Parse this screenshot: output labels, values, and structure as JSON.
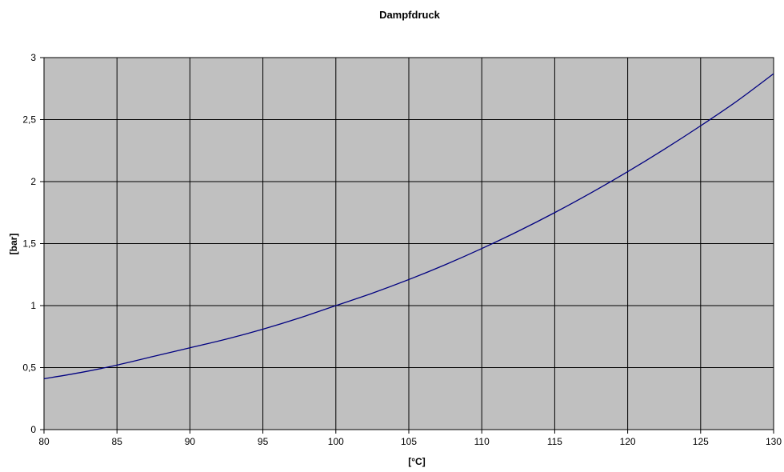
{
  "chart_data": {
    "type": "line",
    "title": "Dampfdruck",
    "xlabel": "[°C]",
    "ylabel": "[bar]",
    "xlim": [
      80,
      130
    ],
    "ylim": [
      0,
      3
    ],
    "grid": true,
    "x_ticks": [
      80,
      85,
      90,
      95,
      100,
      105,
      110,
      115,
      120,
      125,
      130
    ],
    "x_tick_labels": [
      "80",
      "85",
      "90",
      "95",
      "100",
      "105",
      "110",
      "115",
      "120",
      "125",
      "130"
    ],
    "y_ticks": [
      0,
      0.5,
      1,
      1.5,
      2,
      2.5,
      3
    ],
    "y_tick_labels": [
      "0",
      "0,5",
      "1",
      "1,5",
      "2",
      "2,5",
      "3"
    ],
    "colors": {
      "plot_background": "#c0c0c0",
      "gridline": "#000000",
      "series": "#000080"
    },
    "series": [
      {
        "x": [
          80,
          82.5,
          85,
          87.5,
          90,
          92.5,
          95,
          97.5,
          100,
          102.5,
          105,
          107.5,
          110,
          112.5,
          115,
          117.5,
          120,
          122.5,
          125,
          127.5,
          130
        ],
        "values": [
          0.41,
          0.46,
          0.52,
          0.59,
          0.66,
          0.73,
          0.81,
          0.9,
          1.0,
          1.1,
          1.21,
          1.33,
          1.46,
          1.6,
          1.75,
          1.91,
          2.08,
          2.26,
          2.45,
          2.65,
          2.87
        ]
      }
    ]
  }
}
